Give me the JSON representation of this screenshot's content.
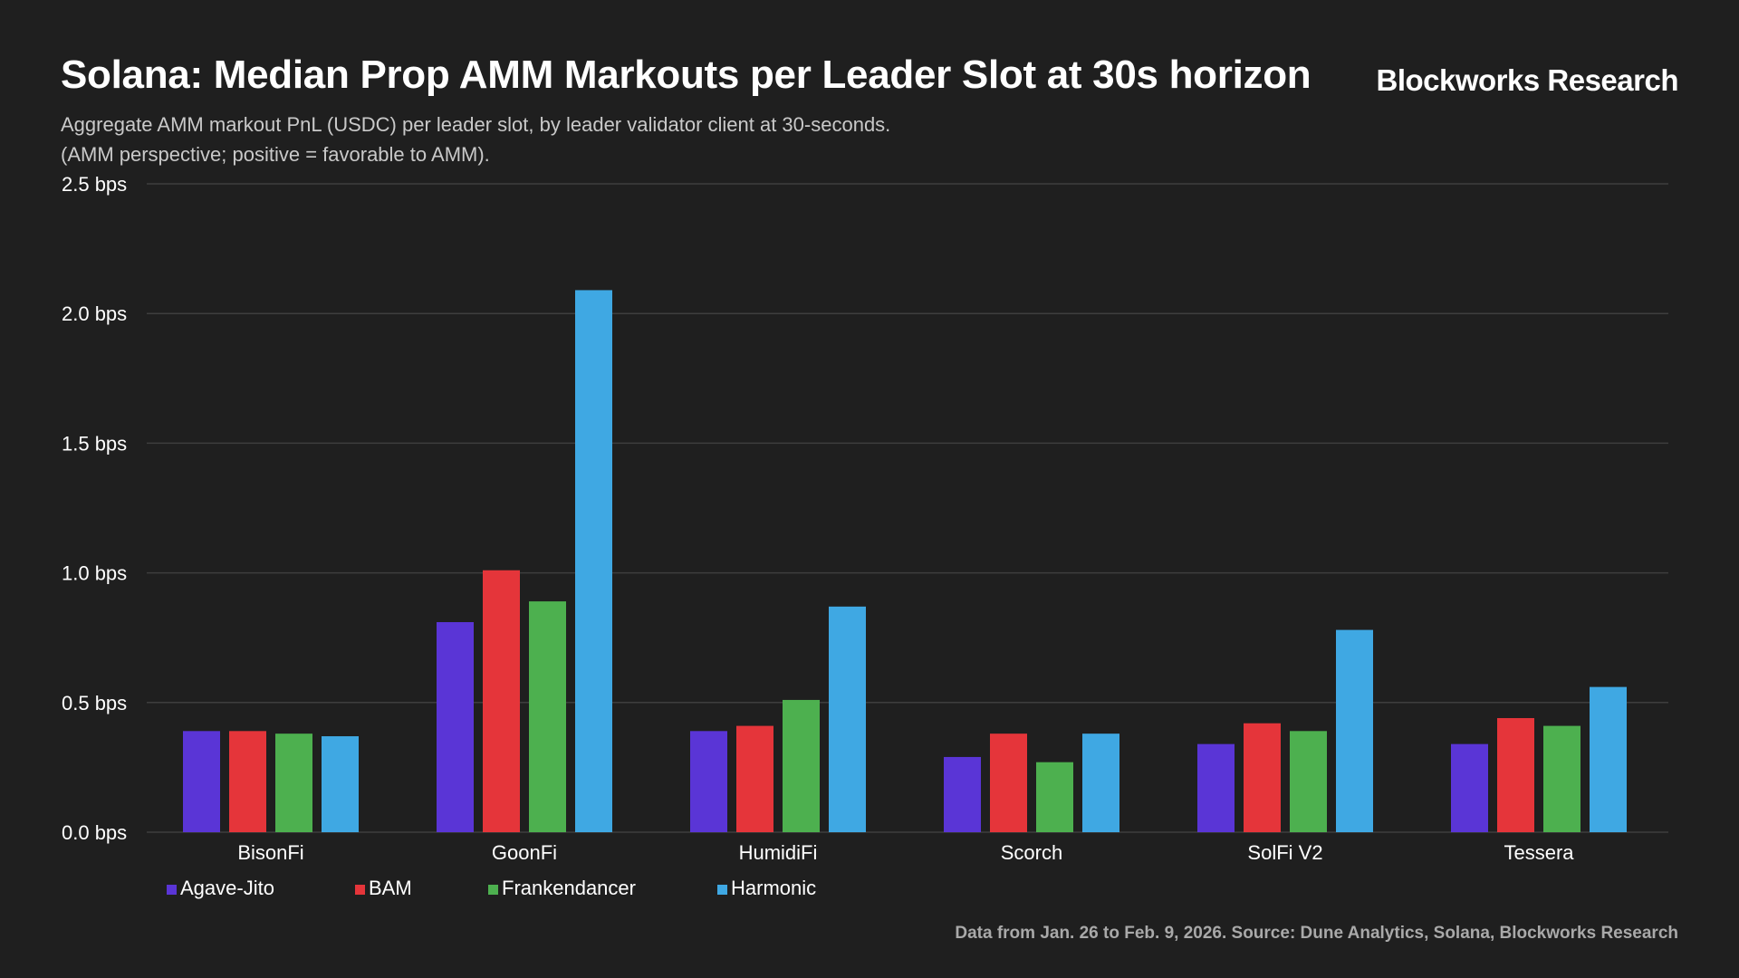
{
  "header": {
    "title": "Solana: Median Prop AMM Markouts per Leader Slot at 30s horizon",
    "brand": "Blockworks Research",
    "subtitle_line1": "Aggregate AMM markout PnL (USDC) per leader slot, by leader validator client at 30-seconds.",
    "subtitle_line2": "(AMM perspective; positive = favorable to AMM)."
  },
  "footer": {
    "source": "Data from Jan. 26 to Feb. 9, 2026. Source: Dune Analytics, Solana, Blockworks Research"
  },
  "colors": {
    "background": "#1f1f1f",
    "grid": "#3e3e3e",
    "Agave-Jito": "#5a35d6",
    "BAM": "#e5353a",
    "Frankendancer": "#4db04f",
    "Harmonic": "#3fa8e3"
  },
  "chart_data": {
    "type": "bar",
    "title": "Solana: Median Prop AMM Markouts per Leader Slot at 30s horizon",
    "xlabel": "",
    "ylabel": "",
    "ylim": [
      0,
      2.5
    ],
    "yticks": [
      0.0,
      0.5,
      1.0,
      1.5,
      2.0,
      2.5
    ],
    "ytick_labels": [
      "0.0 bps",
      "0.5 bps",
      "1.0 bps",
      "1.5 bps",
      "2.0 bps",
      "2.5 bps"
    ],
    "grid": true,
    "legend_position": "bottom-left",
    "categories": [
      "BisonFi",
      "GoonFi",
      "HumidiFi",
      "Scorch",
      "SolFi V2",
      "Tessera"
    ],
    "series": [
      {
        "name": "Agave-Jito",
        "color": "#5a35d6",
        "values": [
          0.39,
          0.81,
          0.39,
          0.29,
          0.34,
          0.34
        ]
      },
      {
        "name": "BAM",
        "color": "#e5353a",
        "values": [
          0.39,
          1.01,
          0.41,
          0.38,
          0.42,
          0.44
        ]
      },
      {
        "name": "Frankendancer",
        "color": "#4db04f",
        "values": [
          0.38,
          0.89,
          0.51,
          0.27,
          0.39,
          0.41
        ]
      },
      {
        "name": "Harmonic",
        "color": "#3fa8e3",
        "values": [
          0.37,
          2.09,
          0.87,
          0.38,
          0.78,
          0.56
        ]
      }
    ]
  }
}
